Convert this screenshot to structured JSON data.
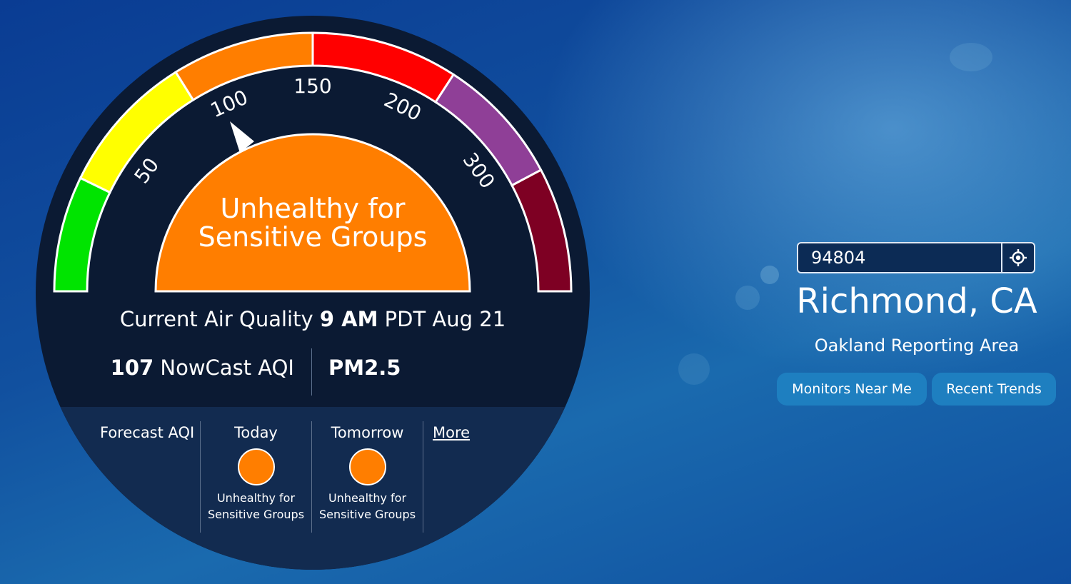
{
  "gauge": {
    "category": [
      "Unhealthy for",
      "Sensitive Groups"
    ],
    "ticks": [
      "50",
      "100",
      "150",
      "200",
      "300"
    ],
    "aqi_value": 107,
    "colors": {
      "good": "#00e400",
      "moderate": "#ffff00",
      "usg": "#ff7e00",
      "unhealthy": "#ff0000",
      "very_unhealthy": "#8f3f97",
      "hazardous": "#7e0023"
    }
  },
  "current": {
    "prefix": "Current Air Quality",
    "time": "9 AM",
    "suffix": "PDT Aug 21"
  },
  "nowcast": {
    "value": "107",
    "label": "NowCast AQI",
    "pollutant": "PM2.5"
  },
  "forecast": {
    "label": "Forecast AQI",
    "days": [
      {
        "day": "Today",
        "category_line1": "Unhealthy for",
        "category_line2": "Sensitive Groups",
        "color": "#ff7e00"
      },
      {
        "day": "Tomorrow",
        "category_line1": "Unhealthy for",
        "category_line2": "Sensitive Groups",
        "color": "#ff7e00"
      }
    ],
    "more_link": "More"
  },
  "location": {
    "search_value": "94804",
    "city": "Richmond, CA",
    "reporting_area": "Oakland Reporting Area",
    "buttons": {
      "monitors": "Monitors Near Me",
      "trends": "Recent Trends"
    }
  }
}
